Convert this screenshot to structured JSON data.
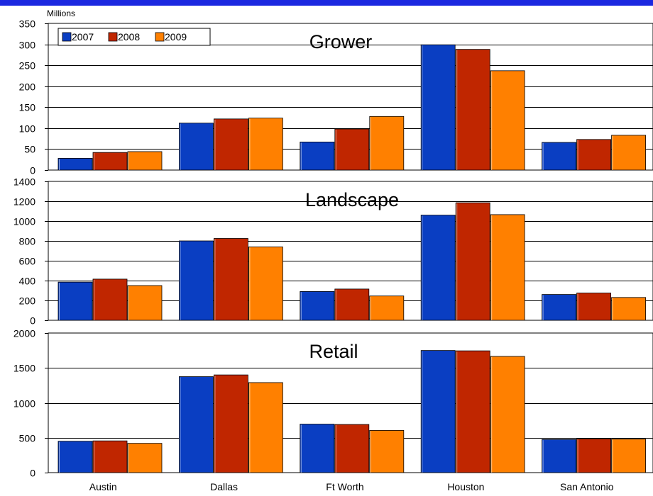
{
  "unit_label": "Millions",
  "chart_data": {
    "type": "bar",
    "categories": [
      "Austin",
      "Dallas",
      "Ft Worth",
      "Houston",
      "San Antonio"
    ],
    "legend": {
      "entries": [
        "2007",
        "2008",
        "2009"
      ],
      "placement": "top-left"
    },
    "colors": [
      "#0a3ec2",
      "#c02600",
      "#ff8000"
    ],
    "grid": true,
    "panels": [
      {
        "title": "Grower",
        "ylim": [
          0,
          350
        ],
        "yticks": [
          0,
          50,
          100,
          150,
          200,
          250,
          300,
          350
        ],
        "series": [
          {
            "name": "2007",
            "values": [
              28,
              112,
              67,
              299,
              66
            ]
          },
          {
            "name": "2008",
            "values": [
              42,
              122,
              98,
              288,
              73
            ]
          },
          {
            "name": "2009",
            "values": [
              44,
              124,
              128,
              237,
              83
            ]
          }
        ]
      },
      {
        "title": "Landscape",
        "ylim": [
          0,
          1400
        ],
        "yticks": [
          0,
          200,
          400,
          600,
          800,
          1000,
          1200,
          1400
        ],
        "series": [
          {
            "name": "2007",
            "values": [
              385,
              800,
              290,
              1060,
              260
            ]
          },
          {
            "name": "2008",
            "values": [
              415,
              825,
              315,
              1185,
              275
            ]
          },
          {
            "name": "2009",
            "values": [
              350,
              740,
              245,
              1065,
              230
            ]
          }
        ]
      },
      {
        "title": "Retail",
        "ylim": [
          0,
          2000
        ],
        "yticks": [
          0,
          500,
          1000,
          1500,
          2000
        ],
        "series": [
          {
            "name": "2007",
            "values": [
              450,
              1375,
              695,
              1750,
              475
            ]
          },
          {
            "name": "2008",
            "values": [
              455,
              1400,
              690,
              1745,
              485
            ]
          },
          {
            "name": "2009",
            "values": [
              420,
              1290,
              605,
              1665,
              480
            ]
          }
        ]
      }
    ]
  }
}
